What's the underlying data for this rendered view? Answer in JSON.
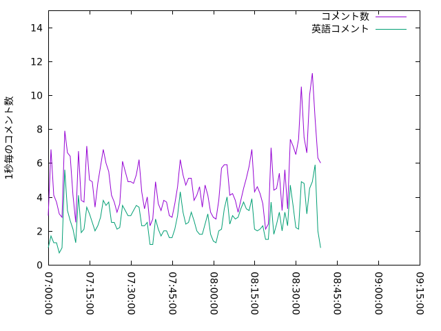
{
  "chart_data": {
    "type": "line",
    "title": "",
    "xlabel": "",
    "ylabel": "1秒毎のコメント数",
    "ylim": [
      0,
      15
    ],
    "xlim": [
      "07:00:00",
      "09:15:00"
    ],
    "yticks": [
      0,
      2,
      4,
      6,
      8,
      10,
      12,
      14
    ],
    "ytick_labels": [
      "0",
      "2",
      "4",
      "6",
      "8",
      "10",
      "12",
      "14"
    ],
    "xticks": [
      "07:00:00",
      "07:15:00",
      "07:30:00",
      "07:45:00",
      "08:00:00",
      "08:15:00",
      "08:30:00",
      "08:45:00",
      "09:00:00",
      "09:15:00"
    ],
    "grid": false,
    "legend_position": "top-right",
    "sample_interval_seconds": 60,
    "x_start": "07:00:00",
    "series": [
      {
        "name": "コメント数",
        "color": "#9400d3",
        "values": [
          2.9,
          6.8,
          4.1,
          3.7,
          3.0,
          2.8,
          7.9,
          6.6,
          6.4,
          4.1,
          2.5,
          6.7,
          3.8,
          3.7,
          7.0,
          5.0,
          4.9,
          3.4,
          4.8,
          5.8,
          6.8,
          6.0,
          5.5,
          4.1,
          3.7,
          3.1,
          3.6,
          6.1,
          5.5,
          4.9,
          4.9,
          4.8,
          5.3,
          6.2,
          4.3,
          3.3,
          4.0,
          2.3,
          2.7,
          4.9,
          3.6,
          3.2,
          3.8,
          3.7,
          2.9,
          2.8,
          3.6,
          4.6,
          6.2,
          5.3,
          4.7,
          5.1,
          5.1,
          3.8,
          4.1,
          4.6,
          3.4,
          4.7,
          4.1,
          3.1,
          2.8,
          2.7,
          3.8,
          5.7,
          5.9,
          5.9,
          4.1,
          4.2,
          3.8,
          3.1,
          3.8,
          4.5,
          5.1,
          5.8,
          6.8,
          4.3,
          4.6,
          4.2,
          3.6,
          2.1,
          2.4,
          6.9,
          4.4,
          4.5,
          5.4,
          3.2,
          5.6,
          3.3,
          7.4,
          7.0,
          6.5,
          7.4,
          10.5,
          7.5,
          6.6,
          10.0,
          11.3,
          8.6,
          6.3,
          6.0
        ]
      },
      {
        "name": "英語コメント",
        "color": "#009e73",
        "values": [
          1.0,
          1.7,
          1.3,
          1.3,
          0.7,
          1.0,
          5.6,
          3.2,
          2.6,
          2.1,
          1.3,
          4.1,
          1.9,
          2.1,
          3.4,
          3.0,
          2.5,
          2.0,
          2.3,
          2.8,
          3.8,
          3.5,
          3.7,
          2.5,
          2.5,
          2.1,
          2.2,
          3.5,
          3.2,
          2.9,
          2.9,
          3.2,
          3.5,
          3.4,
          2.3,
          2.3,
          2.5,
          1.2,
          1.2,
          2.7,
          2.1,
          1.7,
          2.0,
          2.0,
          1.6,
          1.6,
          2.1,
          2.9,
          4.3,
          3.1,
          2.4,
          2.5,
          3.1,
          2.6,
          2.0,
          1.8,
          1.8,
          2.4,
          3.0,
          1.8,
          1.4,
          1.3,
          2.0,
          2.1,
          3.3,
          4.0,
          2.4,
          2.9,
          2.7,
          2.8,
          3.3,
          3.7,
          3.3,
          3.2,
          3.9,
          2.1,
          2.0,
          2.1,
          2.3,
          1.5,
          1.5,
          3.7,
          1.8,
          2.4,
          3.1,
          2.0,
          3.1,
          2.3,
          4.7,
          3.5,
          2.2,
          2.1,
          4.9,
          4.8,
          3.0,
          4.5,
          4.9,
          5.9,
          2.0,
          1.0
        ]
      }
    ]
  }
}
